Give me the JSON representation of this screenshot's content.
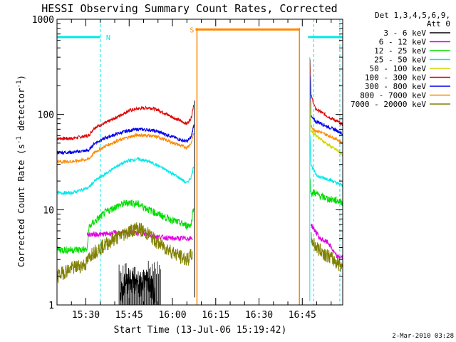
{
  "chart_data": {
    "type": "line",
    "title": "HESSI Observing Summary Count Rates, Corrected",
    "xlabel": "Start Time (13-Jul-06 15:19:42)",
    "ylabel_main": "Corrected Count Rate (s",
    "ylabel_sup1": "-1",
    "ylabel_mid": " detector",
    "ylabel_sup2": "-1",
    "ylabel_end": ")",
    "yscale": "log",
    "xlim_min": [
      0,
      99
    ],
    "ylim": [
      1,
      1000
    ],
    "x_ticks": [
      {
        "min": 10,
        "label": "15:30"
      },
      {
        "min": 25,
        "label": "15:45"
      },
      {
        "min": 40,
        "label": "16:00"
      },
      {
        "min": 55,
        "label": "16:15"
      },
      {
        "min": 70,
        "label": "16:30"
      },
      {
        "min": 85,
        "label": "16:45"
      }
    ],
    "y_ticks": [
      {
        "value": 1,
        "label": "1"
      },
      {
        "value": 10,
        "label": "10"
      },
      {
        "value": 100,
        "label": "100"
      },
      {
        "value": 1000,
        "label": "1000"
      }
    ],
    "legend": {
      "header": [
        "Det 1,3,4,5,6,9,",
        "Att 0"
      ],
      "entries": [
        {
          "label": "3 - 6 keV",
          "color": "#000000"
        },
        {
          "label": "6 - 12 keV",
          "color": "#e000e0"
        },
        {
          "label": "12 - 25 keV",
          "color": "#00dd00"
        },
        {
          "label": "25 - 50 keV",
          "color": "#00e8e8"
        },
        {
          "label": "50 - 100 keV",
          "color": "#d4d400"
        },
        {
          "label": "100 - 300 keV",
          "color": "#dd0000"
        },
        {
          "label": "300 - 800 keV",
          "color": "#0000ee"
        },
        {
          "label": "800 - 7000 keV",
          "color": "#ff8800"
        },
        {
          "label": "7000 - 20000 keV",
          "color": "#808000"
        }
      ]
    },
    "flags": [
      {
        "label": "N",
        "color": "#00e8e8",
        "start_min": -2,
        "end_min": 15,
        "level": 650,
        "dashed_lines_at": [
          15,
          89
        ]
      },
      {
        "label": "S",
        "color": "#ff8800",
        "start_min": 48,
        "end_min": 84,
        "level": 780,
        "solid_lines_at": [
          48.5,
          84
        ]
      },
      {
        "label": "",
        "color": "#00e8e8",
        "start_min": 87,
        "end_min": 99,
        "level": 650
      }
    ],
    "series": [
      {
        "key": "s100_300",
        "color": "#dd0000",
        "points": [
          [
            0,
            56
          ],
          [
            5,
            56
          ],
          [
            8,
            58
          ],
          [
            11,
            60
          ],
          [
            13,
            73
          ],
          [
            17,
            82
          ],
          [
            21,
            95
          ],
          [
            25,
            110
          ],
          [
            28,
            115
          ],
          [
            32,
            118
          ],
          [
            35,
            112
          ],
          [
            39,
            97
          ],
          [
            43,
            85
          ],
          [
            45,
            80
          ],
          [
            46.5,
            92
          ],
          [
            47.5,
            135
          ]
        ],
        "points2": [
          [
            87.7,
            380
          ],
          [
            88,
            160
          ],
          [
            89.5,
            115
          ],
          [
            91,
            108
          ],
          [
            94,
            95
          ],
          [
            97,
            85
          ],
          [
            99,
            78
          ]
        ]
      },
      {
        "key": "s300_800",
        "color": "#0000ee",
        "points": [
          [
            0,
            40
          ],
          [
            5,
            40
          ],
          [
            8,
            41
          ],
          [
            11,
            42
          ],
          [
            13,
            50
          ],
          [
            17,
            57
          ],
          [
            21,
            63
          ],
          [
            25,
            68
          ],
          [
            28,
            70
          ],
          [
            32,
            69
          ],
          [
            35,
            66
          ],
          [
            39,
            60
          ],
          [
            43,
            54
          ],
          [
            45,
            52
          ],
          [
            46.5,
            58
          ],
          [
            47.5,
            80
          ]
        ],
        "points2": [
          [
            87.7,
            260
          ],
          [
            88,
            95
          ],
          [
            89.5,
            85
          ],
          [
            91,
            82
          ],
          [
            94,
            74
          ],
          [
            97,
            68
          ],
          [
            99,
            62
          ]
        ]
      },
      {
        "key": "s800_7000",
        "color": "#ff8800",
        "points": [
          [
            0,
            32
          ],
          [
            5,
            32
          ],
          [
            8,
            33
          ],
          [
            11,
            34
          ],
          [
            13,
            40
          ],
          [
            17,
            47
          ],
          [
            21,
            53
          ],
          [
            25,
            58
          ],
          [
            28,
            61
          ],
          [
            32,
            60
          ],
          [
            35,
            58
          ],
          [
            39,
            52
          ],
          [
            43,
            47
          ],
          [
            45,
            45
          ],
          [
            46.5,
            50
          ],
          [
            47.5,
            66
          ]
        ],
        "points2": [
          [
            87.7,
            150
          ],
          [
            88,
            75
          ],
          [
            89.5,
            68
          ],
          [
            91,
            66
          ],
          [
            94,
            60
          ],
          [
            97,
            55
          ],
          [
            99,
            50
          ]
        ]
      },
      {
        "key": "s50_100",
        "color": "#d4d400",
        "points2": [
          [
            87.7,
            120
          ],
          [
            88,
            68
          ],
          [
            89.5,
            62
          ],
          [
            91,
            56
          ],
          [
            94,
            48
          ],
          [
            97,
            42
          ],
          [
            99,
            38
          ]
        ]
      },
      {
        "key": "s25_50",
        "color": "#00e8e8",
        "points": [
          [
            0,
            15
          ],
          [
            5,
            15
          ],
          [
            8,
            16
          ],
          [
            11,
            17
          ],
          [
            13,
            20
          ],
          [
            17,
            24
          ],
          [
            21,
            29
          ],
          [
            25,
            33
          ],
          [
            28,
            34
          ],
          [
            32,
            32
          ],
          [
            35,
            29
          ],
          [
            39,
            25
          ],
          [
            43,
            21
          ],
          [
            45,
            19
          ],
          [
            46.5,
            22
          ],
          [
            47.5,
            30
          ]
        ],
        "points2": [
          [
            87.7,
            60
          ],
          [
            88,
            30
          ],
          [
            89.5,
            24
          ],
          [
            91,
            22
          ],
          [
            94,
            21
          ],
          [
            97,
            19
          ],
          [
            99,
            18
          ]
        ]
      },
      {
        "key": "s12_25",
        "color": "#00dd00",
        "points": [
          [
            0,
            3.8
          ],
          [
            5,
            3.8
          ],
          [
            8,
            3.8
          ],
          [
            10.5,
            3.8
          ],
          [
            11,
            6.5
          ],
          [
            13,
            7.5
          ],
          [
            17,
            9.5
          ],
          [
            21,
            11
          ],
          [
            25,
            12
          ],
          [
            28,
            11.5
          ],
          [
            32,
            10
          ],
          [
            35,
            9
          ],
          [
            39,
            8
          ],
          [
            43,
            7.2
          ],
          [
            45,
            6.8
          ],
          [
            46.5,
            7
          ],
          [
            47.5,
            12
          ]
        ],
        "points2": [
          [
            87.7,
            20
          ],
          [
            88,
            15
          ],
          [
            89.5,
            15
          ],
          [
            91,
            14
          ],
          [
            94,
            13
          ],
          [
            97,
            12.5
          ],
          [
            99,
            12
          ]
        ]
      },
      {
        "key": "s6_12",
        "color": "#e000e0",
        "points": [
          [
            10.5,
            5.5
          ],
          [
            15,
            5.5
          ],
          [
            20,
            5.7
          ],
          [
            25,
            5.8
          ],
          [
            30,
            5.6
          ],
          [
            35,
            5.2
          ],
          [
            40,
            5
          ],
          [
            45,
            5
          ],
          [
            47,
            5
          ]
        ],
        "points2": [
          [
            88,
            7
          ],
          [
            89.5,
            6
          ],
          [
            91,
            5
          ],
          [
            94,
            4.5
          ],
          [
            97,
            3.2
          ],
          [
            99,
            3.2
          ]
        ]
      },
      {
        "key": "s7000_20000",
        "color": "#808000",
        "points": [
          [
            0,
            2
          ],
          [
            3,
            2.3
          ],
          [
            6,
            2.5
          ],
          [
            10,
            2.7
          ],
          [
            12,
            3.5
          ],
          [
            16,
            4.2
          ],
          [
            20,
            5
          ],
          [
            25,
            6
          ],
          [
            28,
            6.5
          ],
          [
            32,
            5.5
          ],
          [
            35,
            4.5
          ],
          [
            39,
            3.8
          ],
          [
            43,
            3.2
          ],
          [
            45,
            3
          ],
          [
            47,
            3.5
          ]
        ],
        "points2": [
          [
            88,
            5
          ],
          [
            89.5,
            4.2
          ],
          [
            91,
            3.8
          ],
          [
            94,
            3.3
          ],
          [
            97,
            2.8
          ],
          [
            99,
            2.6
          ]
        ]
      },
      {
        "key": "s3_6",
        "color": "#000000",
        "points": [
          [
            22,
            1.4
          ],
          [
            25,
            2
          ],
          [
            28,
            1.6
          ],
          [
            31,
            2
          ],
          [
            34,
            1.3
          ]
        ]
      }
    ],
    "footer_date": "2-Mar-2010 03:28"
  }
}
